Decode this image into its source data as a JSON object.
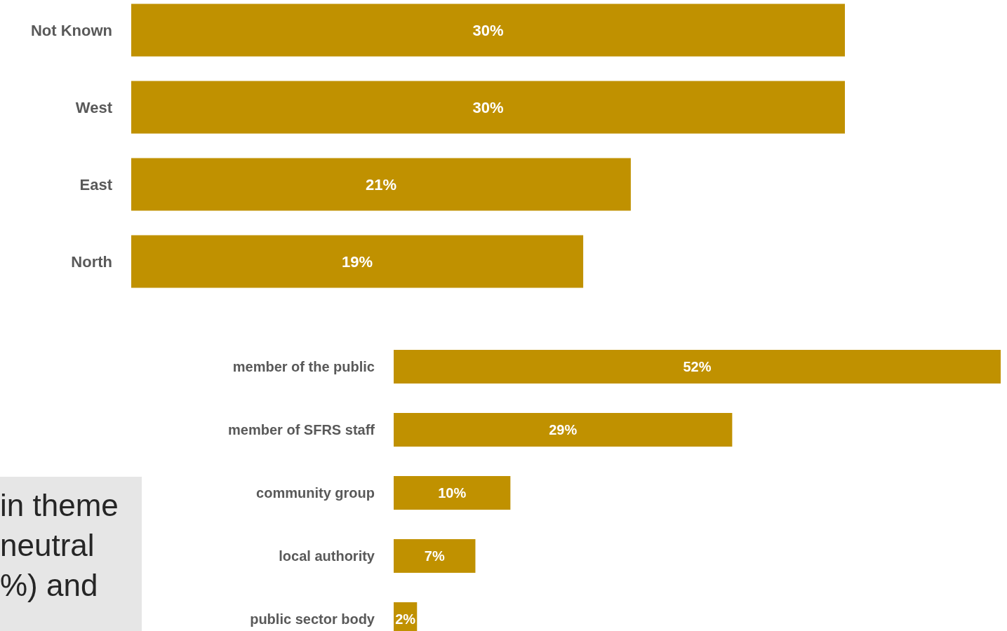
{
  "chart_data": [
    {
      "type": "bar",
      "orientation": "horizontal",
      "categories": [
        "Not Known",
        "West",
        "East",
        "North"
      ],
      "values": [
        30,
        30,
        21,
        19
      ],
      "value_labels": [
        "30%",
        "30%",
        "21%",
        "19%"
      ],
      "color": "#c09100",
      "tick_labels": "y"
    },
    {
      "type": "bar",
      "orientation": "horizontal",
      "categories": [
        "member of the public",
        "member of SFRS staff",
        "community group",
        "local authority",
        "public sector body"
      ],
      "values": [
        52,
        29,
        10,
        7,
        2
      ],
      "value_labels": [
        "52%",
        "29%",
        "10%",
        "7%",
        "2%"
      ],
      "color": "#c09100",
      "tick_labels": "y"
    },
    {
      "type": "other",
      "annotations": [
        "in theme",
        "neutral",
        "%) and"
      ]
    }
  ]
}
